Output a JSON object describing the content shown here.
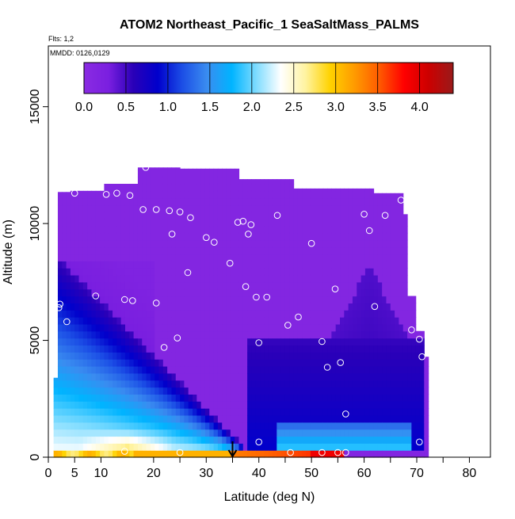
{
  "chart_data": {
    "type": "heatmap",
    "title": "ATOM2 Northeast_Pacific_1 SeaSaltMass_PALMS",
    "flights_label": "Flts: 1,2",
    "date_label": "MMDD: 0126,0129",
    "xlabel": "Latitude (deg N)",
    "ylabel": "Altitude (m)",
    "xlim": [
      0,
      84
    ],
    "ylim": [
      0,
      17600
    ],
    "x_ticks": [
      "0",
      "5",
      "10",
      "20",
      "30",
      "40",
      "50",
      "60",
      "70",
      "80"
    ],
    "y_ticks": [
      "0",
      "5000",
      "10000",
      "15000"
    ],
    "colorbar": {
      "range": [
        0,
        4.4
      ],
      "ticks": [
        "0.0",
        "0.5",
        "1.0",
        "1.5",
        "2.0",
        "2.5",
        "3.0",
        "3.5",
        "4.0"
      ],
      "colors": [
        "#8a2be2",
        "#7a1fe0",
        "#2a00b8",
        "#0000cc",
        "#1c4fe6",
        "#3a8cf0",
        "#00b4ff",
        "#7fdcff",
        "#ffffff",
        "#fff3a0",
        "#ffd200",
        "#ff9a00",
        "#ff5a00",
        "#ff0000",
        "#cc0000",
        "#9a1a1a"
      ]
    },
    "latitude_marker": 35,
    "observations": [
      {
        "lat": 2,
        "alt": 6400
      },
      {
        "lat": 2.2,
        "alt": 6550
      },
      {
        "lat": 3.5,
        "alt": 5800
      },
      {
        "lat": 5,
        "alt": 11300
      },
      {
        "lat": 9,
        "alt": 6900
      },
      {
        "lat": 11,
        "alt": 11250
      },
      {
        "lat": 13,
        "alt": 11300
      },
      {
        "lat": 14.5,
        "alt": 6750
      },
      {
        "lat": 15.5,
        "alt": 11200
      },
      {
        "lat": 16,
        "alt": 6700
      },
      {
        "lat": 18,
        "alt": 10600
      },
      {
        "lat": 20.5,
        "alt": 10600
      },
      {
        "lat": 20.5,
        "alt": 6600
      },
      {
        "lat": 22,
        "alt": 4700
      },
      {
        "lat": 23,
        "alt": 10550
      },
      {
        "lat": 23.5,
        "alt": 9550
      },
      {
        "lat": 24.5,
        "alt": 5100
      },
      {
        "lat": 25,
        "alt": 10500
      },
      {
        "lat": 26.5,
        "alt": 7900
      },
      {
        "lat": 27,
        "alt": 10250
      },
      {
        "lat": 30,
        "alt": 9400
      },
      {
        "lat": 31.5,
        "alt": 9200
      },
      {
        "lat": 34.5,
        "alt": 8300
      },
      {
        "lat": 36,
        "alt": 10050
      },
      {
        "lat": 37,
        "alt": 10100
      },
      {
        "lat": 37.5,
        "alt": 7300
      },
      {
        "lat": 38,
        "alt": 9550
      },
      {
        "lat": 38.5,
        "alt": 9950
      },
      {
        "lat": 39.5,
        "alt": 6850
      },
      {
        "lat": 40,
        "alt": 4900
      },
      {
        "lat": 41.5,
        "alt": 6850
      },
      {
        "lat": 43.5,
        "alt": 10350
      },
      {
        "lat": 45.5,
        "alt": 5650
      },
      {
        "lat": 47.5,
        "alt": 6000
      },
      {
        "lat": 50,
        "alt": 9150
      },
      {
        "lat": 52,
        "alt": 4950
      },
      {
        "lat": 53,
        "alt": 3850
      },
      {
        "lat": 54.5,
        "alt": 7200
      },
      {
        "lat": 55.5,
        "alt": 4050
      },
      {
        "lat": 56.5,
        "alt": 1850
      },
      {
        "lat": 60,
        "alt": 10400
      },
      {
        "lat": 61,
        "alt": 9700
      },
      {
        "lat": 62,
        "alt": 6450
      },
      {
        "lat": 64,
        "alt": 10350
      },
      {
        "lat": 67,
        "alt": 11000
      },
      {
        "lat": 69,
        "alt": 5450
      },
      {
        "lat": 70.5,
        "alt": 5050
      },
      {
        "lat": 71,
        "alt": 4300
      },
      {
        "lat": 40,
        "alt": 650
      },
      {
        "lat": 70.5,
        "alt": 650
      },
      {
        "lat": 14.5,
        "alt": 250
      },
      {
        "lat": 25,
        "alt": 200
      },
      {
        "lat": 46,
        "alt": 200
      },
      {
        "lat": 52,
        "alt": 200
      },
      {
        "lat": 55,
        "alt": 200
      },
      {
        "lat": 56.5,
        "alt": 200
      },
      {
        "lat": 18.5,
        "alt": 12400
      }
    ]
  }
}
